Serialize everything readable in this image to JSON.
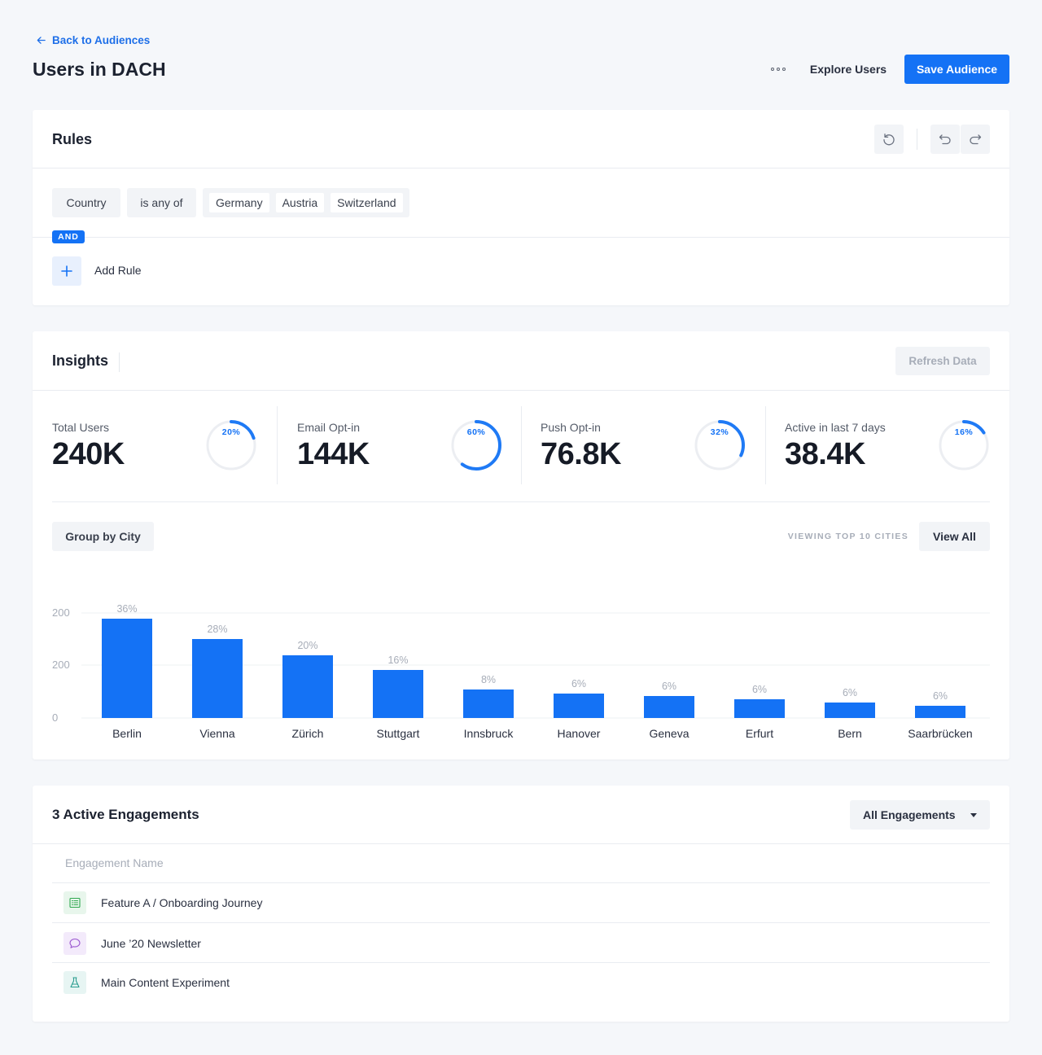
{
  "header": {
    "back_label": "Back to Audiences",
    "title": "Users in DACH",
    "explore_label": "Explore Users",
    "save_label": "Save Audience"
  },
  "rules": {
    "title": "Rules",
    "field": "Country",
    "operator": "is any of",
    "values": [
      "Germany",
      "Austria",
      "Switzerland"
    ],
    "connector": "AND",
    "add_label": "Add Rule"
  },
  "insights": {
    "title": "Insights",
    "refresh_label": "Refresh Data",
    "stats": [
      {
        "label": "Total Users",
        "value": "240K",
        "pct_label": "20%",
        "pct": 0.2
      },
      {
        "label": "Email Opt-in",
        "value": "144K",
        "pct_label": "60%",
        "pct": 0.6
      },
      {
        "label": "Push Opt-in",
        "value": "76.8K",
        "pct_label": "32%",
        "pct": 0.32
      },
      {
        "label": "Active in last 7 days",
        "value": "38.4K",
        "pct_label": "16%",
        "pct": 0.16
      }
    ],
    "group_by_label": "Group by City",
    "viewing_label": "VIEWING TOP 10 CITIES",
    "view_all_label": "View All"
  },
  "chart_data": {
    "type": "bar",
    "categories": [
      "Berlin",
      "Vienna",
      "Zürich",
      "Stuttgart",
      "Innsbruck",
      "Hanover",
      "Geneva",
      "Erfurt",
      "Bern",
      "Saarbrücken"
    ],
    "values": [
      36,
      28,
      20,
      16,
      8,
      6,
      6,
      6,
      6,
      6
    ],
    "bar_heights": [
      122,
      97,
      77,
      59,
      35,
      30,
      27,
      23,
      19,
      15
    ],
    "data_labels": [
      "36%",
      "28%",
      "20%",
      "16%",
      "8%",
      "6%",
      "6%",
      "6%",
      "6%",
      "6%"
    ],
    "y_ticks": [
      "0",
      "200",
      "200"
    ],
    "bar_color": "#1472f5",
    "grid": true
  },
  "engagements": {
    "title": "3 Active Engagements",
    "filter_label": "All Engagements",
    "column_header": "Engagement Name",
    "rows": [
      {
        "name": "Feature A / Onboarding Journey",
        "icon": "journey-icon",
        "color": "#2fa84f",
        "bg": "#e8f6ec"
      },
      {
        "name": "June ’20 Newsletter",
        "icon": "message-icon",
        "color": "#9b59d0",
        "bg": "#f3eafb"
      },
      {
        "name": "Main Content Experiment",
        "icon": "flask-icon",
        "color": "#2a9d8f",
        "bg": "#e7f5f3"
      }
    ]
  }
}
